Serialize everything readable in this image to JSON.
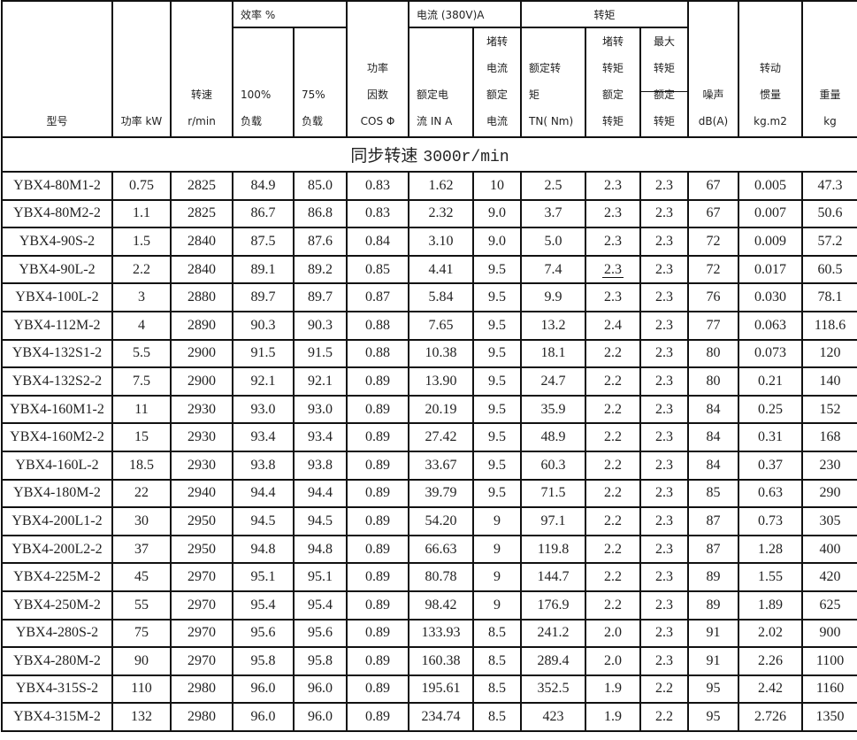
{
  "header": {
    "model": "型号",
    "power": "功率 kW",
    "speed": [
      "转速",
      "r/min"
    ],
    "efficiency_group": "效率 %",
    "eff_100": [
      "100%",
      "负载"
    ],
    "eff_75": [
      "75%",
      "负载"
    ],
    "power_factor": [
      "功率",
      "因数",
      "COS Φ"
    ],
    "current_group": "电流 (380V)A",
    "rated_current": [
      "额定电",
      "流 IN A"
    ],
    "locked_current": [
      "堵转",
      "电流",
      "额定",
      "电流"
    ],
    "torque_group": "转矩",
    "rated_torque": [
      "额定转",
      "矩",
      "TN( Nm)"
    ],
    "locked_torque": [
      "堵转",
      "转矩",
      "额定",
      "转矩"
    ],
    "max_torque": [
      "最大",
      "转矩",
      "额定",
      "转矩"
    ],
    "noise": [
      "噪声",
      "dB(A)"
    ],
    "inertia": [
      "转动",
      "惯量",
      "kg.m2"
    ],
    "weight": [
      "重量",
      "kg"
    ]
  },
  "section": {
    "label": "同步转速",
    "value": "3000r/min"
  },
  "rows": [
    [
      "YBX4-80M1-2",
      "0.75",
      "2825",
      "84.9",
      "85.0",
      "0.83",
      "1.62",
      "10",
      "2.5",
      "2.3",
      "2.3",
      "67",
      "0.005",
      "47.3"
    ],
    [
      "YBX4-80M2-2",
      "1.1",
      "2825",
      "86.7",
      "86.8",
      "0.83",
      "2.32",
      "9.0",
      "3.7",
      "2.3",
      "2.3",
      "67",
      "0.007",
      "50.6"
    ],
    [
      "YBX4-90S-2",
      "1.5",
      "2840",
      "87.5",
      "87.6",
      "0.84",
      "3.10",
      "9.0",
      "5.0",
      "2.3",
      "2.3",
      "72",
      "0.009",
      "57.2"
    ],
    [
      "YBX4-90L-2",
      "2.2",
      "2840",
      "89.1",
      "89.2",
      "0.85",
      "4.41",
      "9.5",
      "7.4",
      "2.3",
      "2.3",
      "72",
      "0.017",
      "60.5"
    ],
    [
      "YBX4-100L-2",
      "3",
      "2880",
      "89.7",
      "89.7",
      "0.87",
      "5.84",
      "9.5",
      "9.9",
      "2.3",
      "2.3",
      "76",
      "0.030",
      "78.1"
    ],
    [
      "YBX4-112M-2",
      "4",
      "2890",
      "90.3",
      "90.3",
      "0.88",
      "7.65",
      "9.5",
      "13.2",
      "2.4",
      "2.3",
      "77",
      "0.063",
      "118.6"
    ],
    [
      "YBX4-132S1-2",
      "5.5",
      "2900",
      "91.5",
      "91.5",
      "0.88",
      "10.38",
      "9.5",
      "18.1",
      "2.2",
      "2.3",
      "80",
      "0.073",
      "120"
    ],
    [
      "YBX4-132S2-2",
      "7.5",
      "2900",
      "92.1",
      "92.1",
      "0.89",
      "13.90",
      "9.5",
      "24.7",
      "2.2",
      "2.3",
      "80",
      "0.21",
      "140"
    ],
    [
      "YBX4-160M1-2",
      "11",
      "2930",
      "93.0",
      "93.0",
      "0.89",
      "20.19",
      "9.5",
      "35.9",
      "2.2",
      "2.3",
      "84",
      "0.25",
      "152"
    ],
    [
      "YBX4-160M2-2",
      "15",
      "2930",
      "93.4",
      "93.4",
      "0.89",
      "27.42",
      "9.5",
      "48.9",
      "2.2",
      "2.3",
      "84",
      "0.31",
      "168"
    ],
    [
      "YBX4-160L-2",
      "18.5",
      "2930",
      "93.8",
      "93.8",
      "0.89",
      "33.67",
      "9.5",
      "60.3",
      "2.2",
      "2.3",
      "84",
      "0.37",
      "230"
    ],
    [
      "YBX4-180M-2",
      "22",
      "2940",
      "94.4",
      "94.4",
      "0.89",
      "39.79",
      "9.5",
      "71.5",
      "2.2",
      "2.3",
      "85",
      "0.63",
      "290"
    ],
    [
      "YBX4-200L1-2",
      "30",
      "2950",
      "94.5",
      "94.5",
      "0.89",
      "54.20",
      "9",
      "97.1",
      "2.2",
      "2.3",
      "87",
      "0.73",
      "305"
    ],
    [
      "YBX4-200L2-2",
      "37",
      "2950",
      "94.8",
      "94.8",
      "0.89",
      "66.63",
      "9",
      "119.8",
      "2.2",
      "2.3",
      "87",
      "1.28",
      "400"
    ],
    [
      "YBX4-225M-2",
      "45",
      "2970",
      "95.1",
      "95.1",
      "0.89",
      "80.78",
      "9",
      "144.7",
      "2.2",
      "2.3",
      "89",
      "1.55",
      "420"
    ],
    [
      "YBX4-250M-2",
      "55",
      "2970",
      "95.4",
      "95.4",
      "0.89",
      "98.42",
      "9",
      "176.9",
      "2.2",
      "2.3",
      "89",
      "1.89",
      "625"
    ],
    [
      "YBX4-280S-2",
      "75",
      "2970",
      "95.6",
      "95.6",
      "0.89",
      "133.93",
      "8.5",
      "241.2",
      "2.0",
      "2.3",
      "91",
      "2.02",
      "900"
    ],
    [
      "YBX4-280M-2",
      "90",
      "2970",
      "95.8",
      "95.8",
      "0.89",
      "160.38",
      "8.5",
      "289.4",
      "2.0",
      "2.3",
      "91",
      "2.26",
      "1100"
    ],
    [
      "YBX4-315S-2",
      "110",
      "2980",
      "96.0",
      "96.0",
      "0.89",
      "195.61",
      "8.5",
      "352.5",
      "1.9",
      "2.2",
      "95",
      "2.42",
      "1160"
    ],
    [
      "YBX4-315M-2",
      "132",
      "2980",
      "96.0",
      "96.0",
      "0.89",
      "234.74",
      "8.5",
      "423",
      "1.9",
      "2.2",
      "95",
      "2.726",
      "1350"
    ]
  ]
}
